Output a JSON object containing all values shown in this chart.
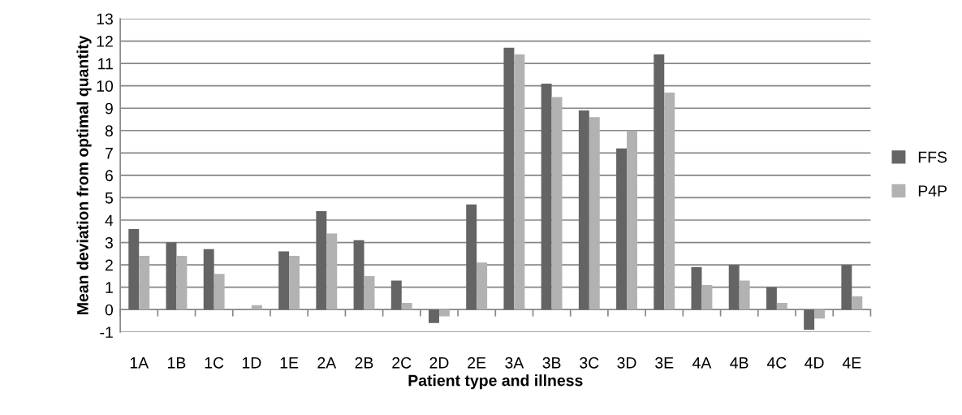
{
  "chart_data": {
    "type": "bar",
    "xlabel": "Patient type and illness",
    "ylabel": "Mean deviation from optimal quantity",
    "categories": [
      "1A",
      "1B",
      "1C",
      "1D",
      "1E",
      "2A",
      "2B",
      "2C",
      "2D",
      "2E",
      "3A",
      "3B",
      "3C",
      "3D",
      "3E",
      "4A",
      "4B",
      "4C",
      "4D",
      "4E"
    ],
    "series": [
      {
        "name": "FFS",
        "color": "#646464",
        "values": [
          3.6,
          3.0,
          2.7,
          0.0,
          2.6,
          4.4,
          3.1,
          1.3,
          -0.6,
          4.7,
          11.7,
          10.1,
          8.9,
          7.2,
          11.4,
          1.9,
          2.0,
          1.0,
          -0.9,
          2.0
        ]
      },
      {
        "name": "P4P",
        "color": "#b2b2b2",
        "values": [
          2.4,
          2.4,
          1.6,
          0.2,
          2.4,
          3.4,
          1.5,
          0.3,
          -0.3,
          2.1,
          11.4,
          9.5,
          8.6,
          8.0,
          9.7,
          1.1,
          1.3,
          0.3,
          -0.4,
          0.6
        ]
      }
    ],
    "ylim": [
      -1,
      13
    ],
    "yticks": [
      -1,
      0,
      1,
      2,
      3,
      4,
      5,
      6,
      7,
      8,
      9,
      10,
      11,
      12,
      13
    ],
    "grid": "y",
    "legend": "right"
  }
}
